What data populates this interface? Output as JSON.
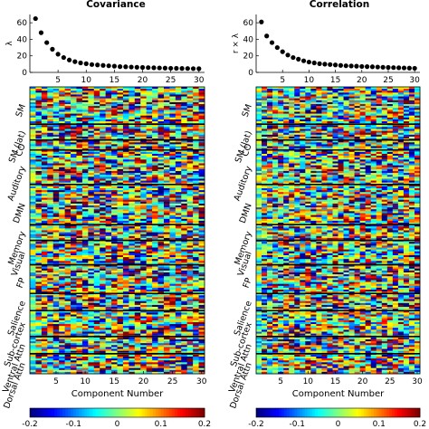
{
  "chart_data": [
    {
      "type": "scatter",
      "title": "Covariance",
      "ylabel": "λ",
      "xlabel": "",
      "xlim": [
        0,
        31
      ],
      "ylim": [
        0,
        70
      ],
      "yticks": [
        0,
        20,
        40,
        60
      ],
      "xticks": [
        5,
        10,
        15,
        20,
        25,
        30
      ],
      "x": [
        1,
        2,
        3,
        4,
        5,
        6,
        7,
        8,
        9,
        10,
        11,
        12,
        13,
        14,
        15,
        16,
        17,
        18,
        19,
        20,
        21,
        22,
        23,
        24,
        25,
        26,
        27,
        28,
        29,
        30
      ],
      "values": [
        65,
        48,
        36,
        28,
        22,
        18,
        15,
        13,
        11.5,
        10.5,
        9.5,
        9,
        8.5,
        8,
        7.5,
        7,
        6.8,
        6.5,
        6.2,
        6,
        5.8,
        5.6,
        5.4,
        5.2,
        5,
        4.9,
        4.8,
        4.7,
        4.6,
        4.5
      ]
    },
    {
      "type": "heatmap",
      "xlabel": "Component Number",
      "xticks": [
        5,
        10,
        15,
        20,
        25,
        30
      ],
      "n_components": 30,
      "networks": [
        "SM",
        "SM (lat)",
        "CO",
        "Auditory",
        "DMN",
        "Memory",
        "Visual",
        "FP",
        "Salience",
        "Sub-cortex",
        "Ventral Attn",
        "Dorsal Attn"
      ],
      "clim": [
        -0.2,
        0.2
      ],
      "colormap": "jet"
    },
    {
      "type": "scatter",
      "title": "Correlation",
      "ylabel": "r × λ",
      "xlabel": "",
      "xlim": [
        0,
        31
      ],
      "ylim": [
        0,
        70
      ],
      "yticks": [
        0,
        20,
        40,
        60
      ],
      "xticks": [
        5,
        10,
        15,
        20,
        25,
        30
      ],
      "x": [
        1,
        2,
        3,
        4,
        5,
        6,
        7,
        8,
        9,
        10,
        11,
        12,
        13,
        14,
        15,
        16,
        17,
        18,
        19,
        20,
        21,
        22,
        23,
        24,
        25,
        26,
        27,
        28,
        29,
        30
      ],
      "values": [
        61,
        44,
        36,
        30,
        25,
        21,
        18,
        16,
        14,
        12.5,
        11.5,
        10.5,
        10,
        9.5,
        9,
        8.5,
        8,
        7.8,
        7.5,
        7.2,
        7,
        6.8,
        6.5,
        6.2,
        6,
        5.8,
        5.6,
        5.4,
        5.2,
        5
      ]
    },
    {
      "type": "heatmap",
      "xlabel": "Component Number",
      "xticks": [
        5,
        10,
        15,
        20,
        25,
        30
      ],
      "n_components": 30,
      "networks": [
        "SM",
        "SM (lat)",
        "CO",
        "Auditory",
        "DMN",
        "Memory",
        "Visual",
        "FP",
        "Salience",
        "Sub-cortex",
        "Ventral Attn",
        "Dorsal Attn"
      ],
      "clim": [
        -0.2,
        0.2
      ],
      "colormap": "jet"
    }
  ],
  "colorbar": {
    "ticks": [
      "-0.2",
      "-0.1",
      "0",
      "0.1",
      "0.2"
    ]
  }
}
